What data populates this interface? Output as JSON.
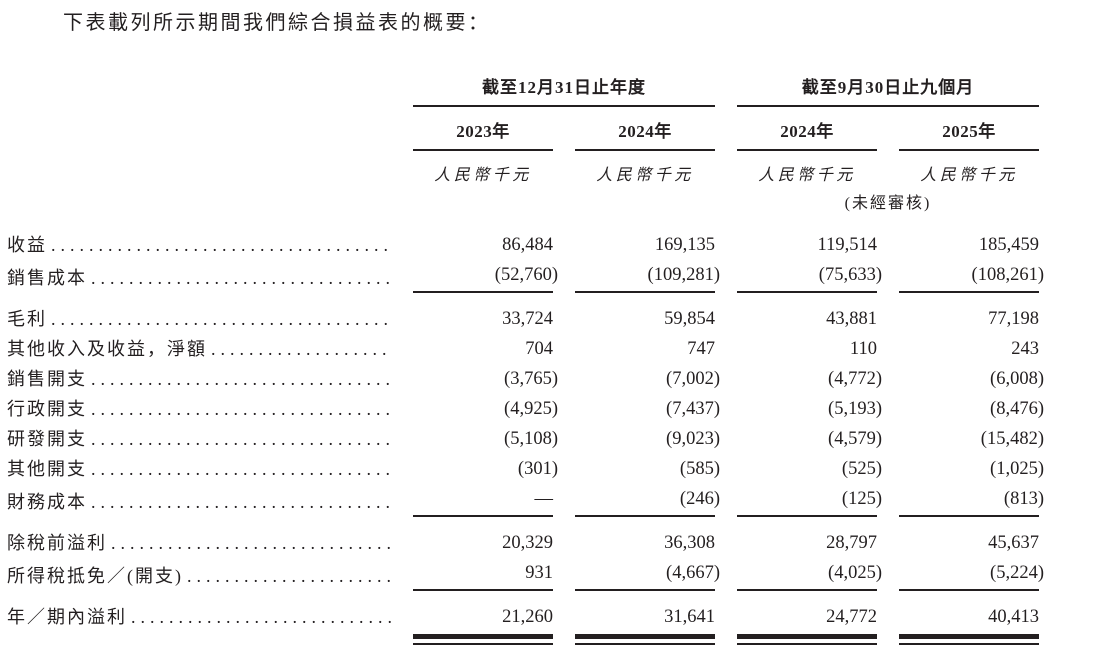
{
  "title": "下表載列所示期間我們綜合損益表的概要：",
  "colors": {
    "text": "#231f20",
    "background": "#ffffff"
  },
  "table": {
    "col_groups": [
      {
        "label": "截至12月31日止年度",
        "years": [
          "2023年",
          "2024年"
        ]
      },
      {
        "label": "截至9月30日止九個月",
        "years": [
          "2024年",
          "2025年"
        ]
      }
    ],
    "unit_label": "人民幣千元",
    "unaudited_note": "(未經審核)",
    "rows": [
      {
        "label": "收益",
        "values": [
          "86,484",
          "169,135",
          "119,514",
          "185,459"
        ]
      },
      {
        "label": "銷售成本",
        "values": [
          "(52,760)",
          "(109,281)",
          "(75,633)",
          "(108,261)"
        ],
        "rule_below": true
      },
      {
        "label": "毛利",
        "values": [
          "33,724",
          "59,854",
          "43,881",
          "77,198"
        ]
      },
      {
        "label": "其他收入及收益，淨額",
        "values": [
          "704",
          "747",
          "110",
          "243"
        ]
      },
      {
        "label": "銷售開支",
        "values": [
          "(3,765)",
          "(7,002)",
          "(4,772)",
          "(6,008)"
        ]
      },
      {
        "label": "行政開支",
        "values": [
          "(4,925)",
          "(7,437)",
          "(5,193)",
          "(8,476)"
        ]
      },
      {
        "label": "研發開支",
        "values": [
          "(5,108)",
          "(9,023)",
          "(4,579)",
          "(15,482)"
        ]
      },
      {
        "label": "其他開支",
        "values": [
          "(301)",
          "(585)",
          "(525)",
          "(1,025)"
        ]
      },
      {
        "label": "財務成本",
        "values": [
          "—",
          "(246)",
          "(125)",
          "(813)"
        ],
        "rule_below": true
      },
      {
        "label": "除稅前溢利",
        "values": [
          "20,329",
          "36,308",
          "28,797",
          "45,637"
        ]
      },
      {
        "label": "所得稅抵免／(開支)",
        "values": [
          "931",
          "(4,667)",
          "(4,025)",
          "(5,224)"
        ],
        "rule_below": true
      },
      {
        "label": "年／期內溢利",
        "values": [
          "21,260",
          "31,641",
          "24,772",
          "40,413"
        ],
        "double_rule_below": true
      }
    ]
  }
}
